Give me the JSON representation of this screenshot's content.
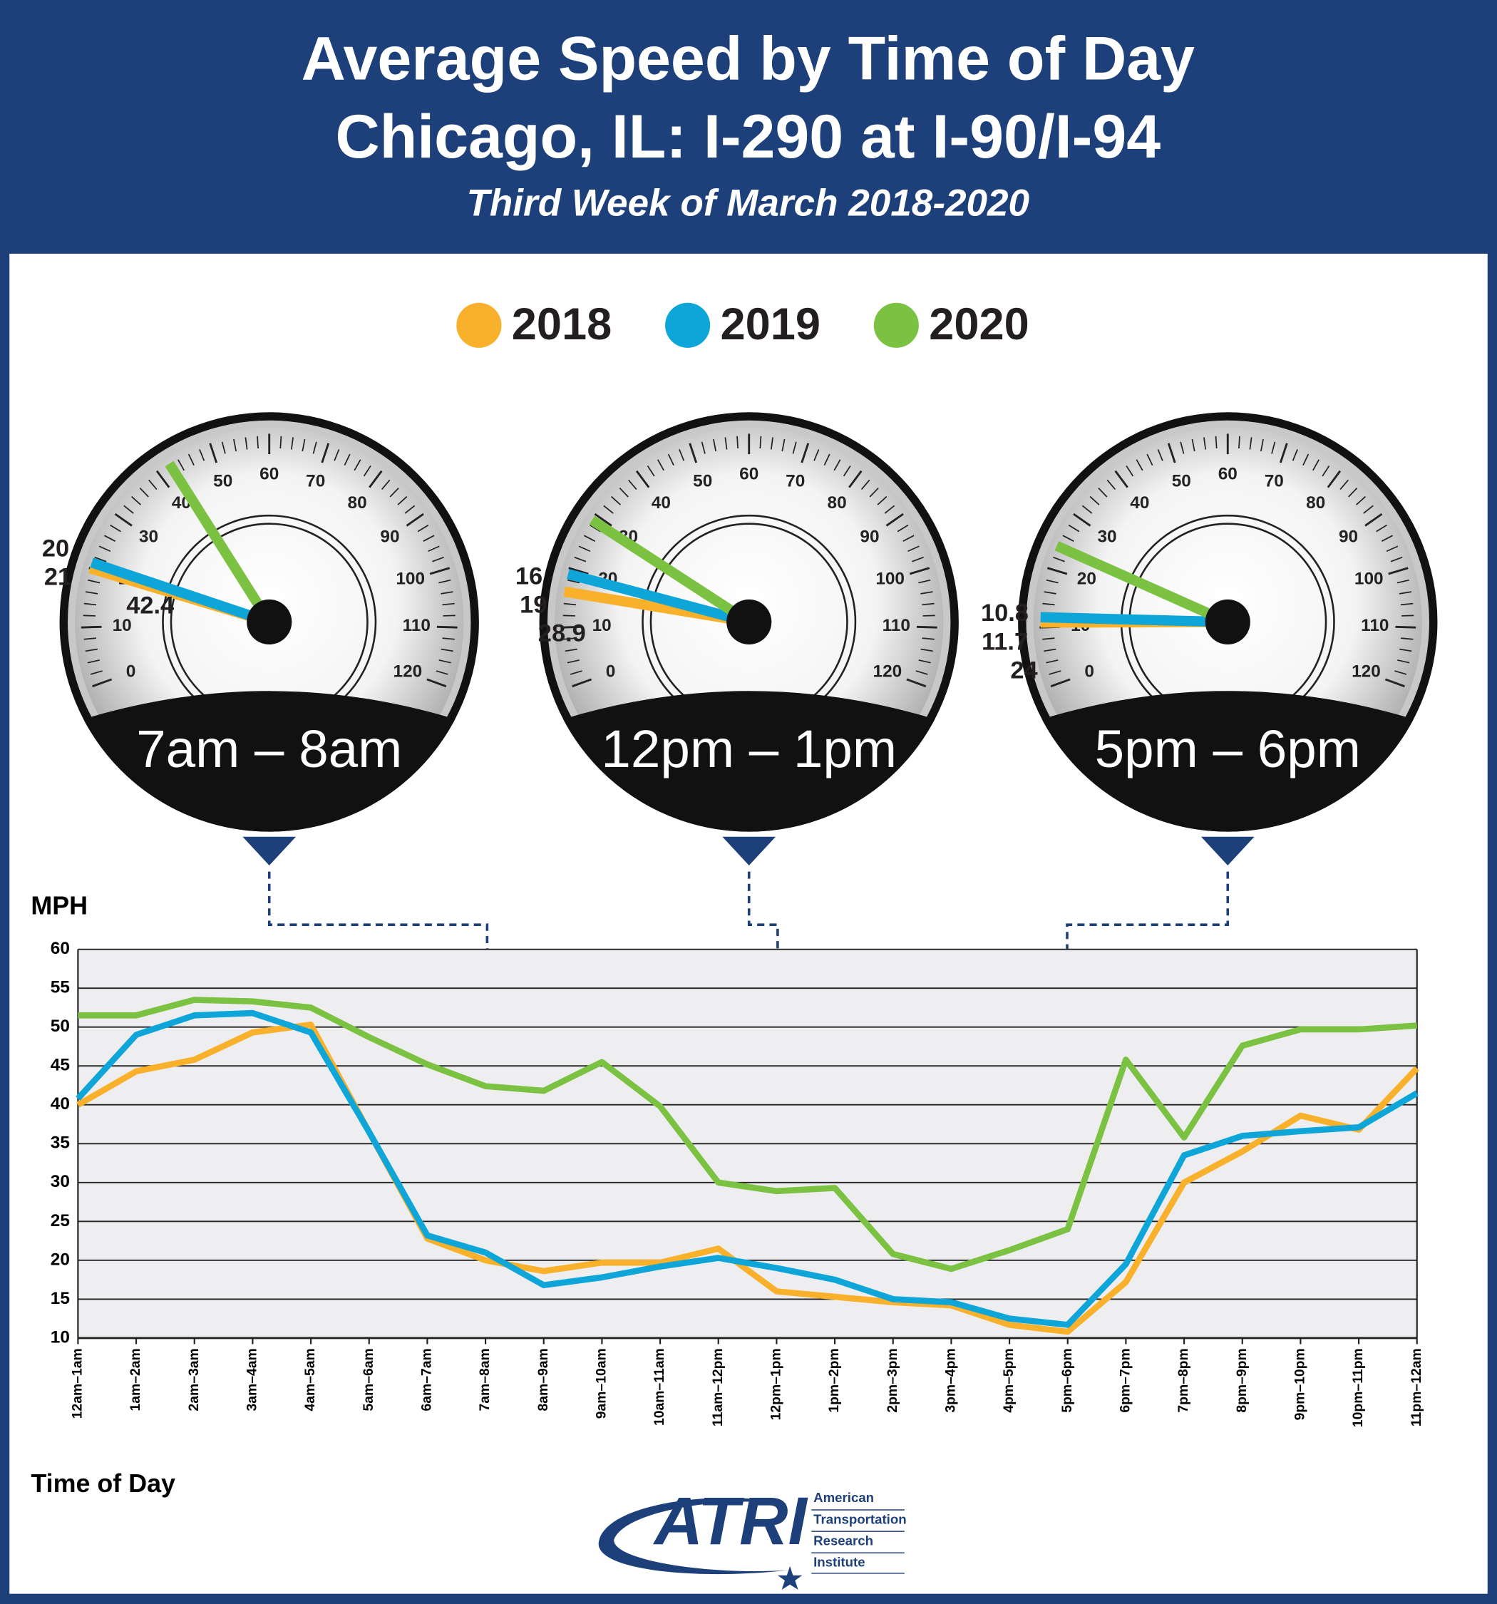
{
  "header": {
    "title": [
      "Average Speed by Time of Day",
      "Chicago, IL: I-290 at I-90/I-94"
    ],
    "subtitle": "Third Week of March 2018-2020"
  },
  "chart_data": [
    {
      "type": "line",
      "y_label": "MPH",
      "x_label": "Time of Day",
      "categories": [
        "12am–1am",
        "1am–2am",
        "2am–3am",
        "3am–4am",
        "4am–5am",
        "5am–6am",
        "6am–7am",
        "7am–8am",
        "8am–9am",
        "9am–10am",
        "10am–11am",
        "11am–12pm",
        "12pm–1pm",
        "1pm–2pm",
        "2pm–3pm",
        "3pm–4pm",
        "4pm–5pm",
        "5pm–6pm",
        "6pm–7pm",
        "7pm–8pm",
        "8pm–9pm",
        "9pm–10pm",
        "10pm–11pm",
        "11pm–12am"
      ],
      "series": [
        {
          "name": "2018",
          "color": "#f9b02a",
          "values": [
            40,
            44.3,
            45.8,
            49.3,
            50.3,
            36.5,
            22.8,
            20,
            18.6,
            19.7,
            19.7,
            21.5,
            16,
            15.3,
            14.6,
            14.2,
            11.7,
            10.8,
            17.2,
            30,
            34,
            38.6,
            36.8,
            44.7
          ]
        },
        {
          "name": "2019",
          "color": "#0ea5d8",
          "values": [
            40.8,
            49,
            51.5,
            51.8,
            49.3,
            36.5,
            23.2,
            21,
            16.8,
            17.8,
            19.2,
            20.3,
            19,
            17.5,
            15,
            14.6,
            12.5,
            11.7,
            19.5,
            33.5,
            36,
            36.6,
            37.1,
            41.5
          ]
        },
        {
          "name": "2020",
          "color": "#7cc242",
          "values": [
            51.5,
            51.5,
            53.5,
            53.3,
            52.5,
            48.7,
            45.2,
            42.4,
            41.8,
            45.5,
            39.8,
            30,
            28.9,
            29.3,
            20.8,
            18.9,
            21.3,
            24,
            45.8,
            35.8,
            47.6,
            49.7,
            49.7,
            50.2
          ]
        }
      ],
      "ylim": [
        10,
        60
      ],
      "yticks": [
        10,
        15,
        20,
        25,
        30,
        35,
        40,
        45,
        50,
        55,
        60
      ],
      "grid": true
    },
    {
      "type": "gauge",
      "title": "7am – 8am",
      "values": [
        20,
        21,
        42.4
      ],
      "lim": [
        0,
        120
      ],
      "ticks": [
        0,
        10,
        20,
        30,
        40,
        50,
        60,
        70,
        80,
        90,
        100,
        110,
        120
      ]
    },
    {
      "type": "gauge",
      "title": "12pm – 1pm",
      "values": [
        16,
        19,
        28.9
      ],
      "lim": [
        0,
        120
      ],
      "ticks": [
        0,
        10,
        20,
        30,
        40,
        50,
        60,
        70,
        80,
        90,
        100,
        110,
        120
      ]
    },
    {
      "type": "gauge",
      "title": "5pm – 6pm",
      "values": [
        10.8,
        11.7,
        24
      ],
      "lim": [
        0,
        120
      ],
      "ticks": [
        0,
        10,
        20,
        30,
        40,
        50,
        60,
        70,
        80,
        90,
        100,
        110,
        120
      ]
    }
  ],
  "logo": {
    "mark": "ATRI",
    "lines": [
      "American",
      "Transportation",
      "Research",
      "Institute"
    ]
  }
}
